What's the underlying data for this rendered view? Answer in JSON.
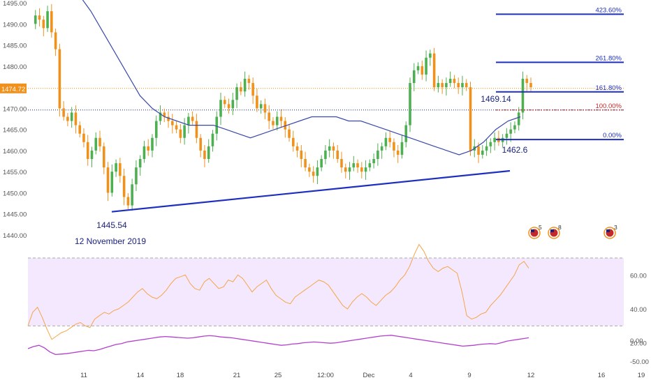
{
  "chart_data": [
    {
      "type": "candlestick",
      "panel": "price",
      "y_ticks": [
        "1495.00",
        "1490.00",
        "1485.00",
        "1480.00",
        "1475.00",
        "1470.00",
        "1465.00",
        "1460.00",
        "1455.00",
        "1450.00",
        "1445.00",
        "1440.00"
      ],
      "ylim": [
        1437,
        1496
      ],
      "price_axis_badge": "1474.72",
      "current_price": 1474.72,
      "x_ticks": [
        "11",
        "14",
        "18",
        "21",
        "25",
        "12:00",
        "Dec",
        "4",
        "9",
        "12",
        "16",
        "19"
      ],
      "candle_colors": {
        "up": "#4caf50",
        "down": "#f0911c"
      },
      "close_series": [
        1490,
        1492,
        1491,
        1489,
        1493,
        1488,
        1484,
        1470,
        1468,
        1467,
        1469,
        1466,
        1464,
        1462,
        1458,
        1460,
        1463,
        1461,
        1456,
        1450,
        1455,
        1457,
        1454,
        1449,
        1447,
        1452,
        1456,
        1458,
        1461,
        1460,
        1463,
        1467,
        1469,
        1468,
        1467,
        1466,
        1465,
        1463,
        1466,
        1468,
        1467,
        1463,
        1460,
        1458,
        1461,
        1464,
        1468,
        1472,
        1471,
        1470,
        1472,
        1475,
        1474,
        1477,
        1476,
        1473,
        1470,
        1471,
        1469,
        1467,
        1466,
        1468,
        1467,
        1465,
        1463,
        1461,
        1460,
        1458,
        1456,
        1455,
        1454,
        1456,
        1458,
        1460,
        1461,
        1460,
        1458,
        1456,
        1455,
        1456,
        1457,
        1456,
        1455,
        1456,
        1457,
        1458,
        1460,
        1461,
        1463,
        1462,
        1460,
        1459,
        1462,
        1466,
        1476,
        1479,
        1480,
        1478,
        1482,
        1483,
        1475,
        1476,
        1475,
        1476,
        1477,
        1476,
        1475,
        1476,
        1475,
        1460,
        1461,
        1459,
        1460,
        1461,
        1462,
        1463,
        1462,
        1463,
        1464,
        1465,
        1466,
        1469,
        1477,
        1476,
        1475
      ],
      "annotations": [
        {
          "text": "1445.54",
          "color": "#1a237e",
          "kind": "low"
        },
        {
          "text": "12 November 2019",
          "color": "#1a237e",
          "kind": "date"
        },
        {
          "text": "1469.14",
          "color": "#1a237e",
          "kind": "pivot"
        },
        {
          "text": "1462.6",
          "color": "#1a237e",
          "kind": "low"
        }
      ],
      "fibonacci_levels": [
        {
          "label": "0.00%",
          "price": 1462.6
        },
        {
          "label": "100.00%",
          "price": 1469.6
        },
        {
          "label": "161.80%",
          "price": 1473.9
        },
        {
          "label": "261.80%",
          "price": 1480.9
        },
        {
          "label": "423.60%",
          "price": 1492.3
        }
      ],
      "moving_average": [
        1500,
        1497,
        1493,
        1488,
        1483,
        1478,
        1473,
        1470,
        1468,
        1467,
        1466,
        1466,
        1466,
        1465,
        1464,
        1463,
        1464,
        1465,
        1466,
        1467,
        1468,
        1468,
        1468,
        1467,
        1467,
        1466,
        1465,
        1464,
        1463,
        1462,
        1461,
        1460,
        1459,
        1460,
        1462,
        1465,
        1467,
        1468
      ],
      "trendline": {
        "from": 1445.5,
        "to": 1455.2
      },
      "horizontal_lines": [
        {
          "price": 1474.72,
          "color": "#f0911c",
          "style": "dotted"
        },
        {
          "price": 1469.6,
          "color": "#1a237e",
          "style": "dotted"
        }
      ],
      "event_markers": [
        {
          "count": "5",
          "label": "us-flag-icon"
        },
        {
          "count": "8",
          "label": "us-flag-icon"
        },
        {
          "count": "3",
          "label": "us-flag-icon"
        }
      ]
    },
    {
      "type": "line",
      "panel": "rsi",
      "color": "#f5a54a",
      "y_ticks": [
        "60.00",
        "40.00",
        "20.00"
      ],
      "ylim": [
        18,
        80
      ],
      "band": [
        30,
        70
      ],
      "band_color": "#f3e8fd",
      "values": [
        30,
        38,
        41,
        35,
        28,
        22,
        24,
        26,
        27,
        29,
        31,
        32,
        30,
        29,
        34,
        36,
        38,
        37,
        39,
        40,
        42,
        44,
        47,
        50,
        52,
        49,
        47,
        46,
        48,
        51,
        55,
        58,
        59,
        60,
        55,
        52,
        51,
        56,
        58,
        55,
        52,
        53,
        57,
        56,
        60,
        58,
        54,
        50,
        53,
        55,
        57,
        52,
        48,
        46,
        44,
        43,
        47,
        49,
        51,
        53,
        55,
        57,
        56,
        54,
        50,
        46,
        42,
        40,
        44,
        47,
        49,
        47,
        44,
        42,
        45,
        48,
        50,
        53,
        57,
        60,
        65,
        72,
        78,
        74,
        68,
        64,
        62,
        64,
        65,
        63,
        61,
        50,
        36,
        34,
        35,
        37,
        38,
        42,
        45,
        48,
        52,
        56,
        60,
        66,
        68,
        64
      ]
    },
    {
      "type": "line",
      "panel": "oscillator",
      "color": "#b43fce",
      "y_ticks": [
        "0.00",
        "-50.00"
      ],
      "ylim": [
        -62,
        12
      ],
      "values": [
        -20,
        -15,
        -12,
        -18,
        -28,
        -34,
        -33,
        -32,
        -30,
        -28,
        -26,
        -24,
        -25,
        -22,
        -18,
        -14,
        -10,
        -8,
        -4,
        -2,
        0,
        2,
        4,
        6,
        8,
        9,
        8,
        7,
        6,
        5,
        6,
        8,
        10,
        11,
        10,
        8,
        7,
        6,
        4,
        2,
        0,
        -2,
        -4,
        -6,
        -8,
        -10,
        -12,
        -11,
        -9,
        -8,
        -6,
        -5,
        -4,
        -5,
        -6,
        -7,
        -6,
        -4,
        -2,
        0,
        2,
        4,
        6,
        8,
        10,
        11,
        12,
        10,
        8,
        6,
        4,
        2,
        0,
        -2,
        -4,
        -6,
        -8,
        -10,
        -12,
        -14,
        -13,
        -12,
        -10,
        -9,
        -8,
        -9,
        -6,
        -2,
        0,
        2,
        4,
        6
      ]
    }
  ]
}
